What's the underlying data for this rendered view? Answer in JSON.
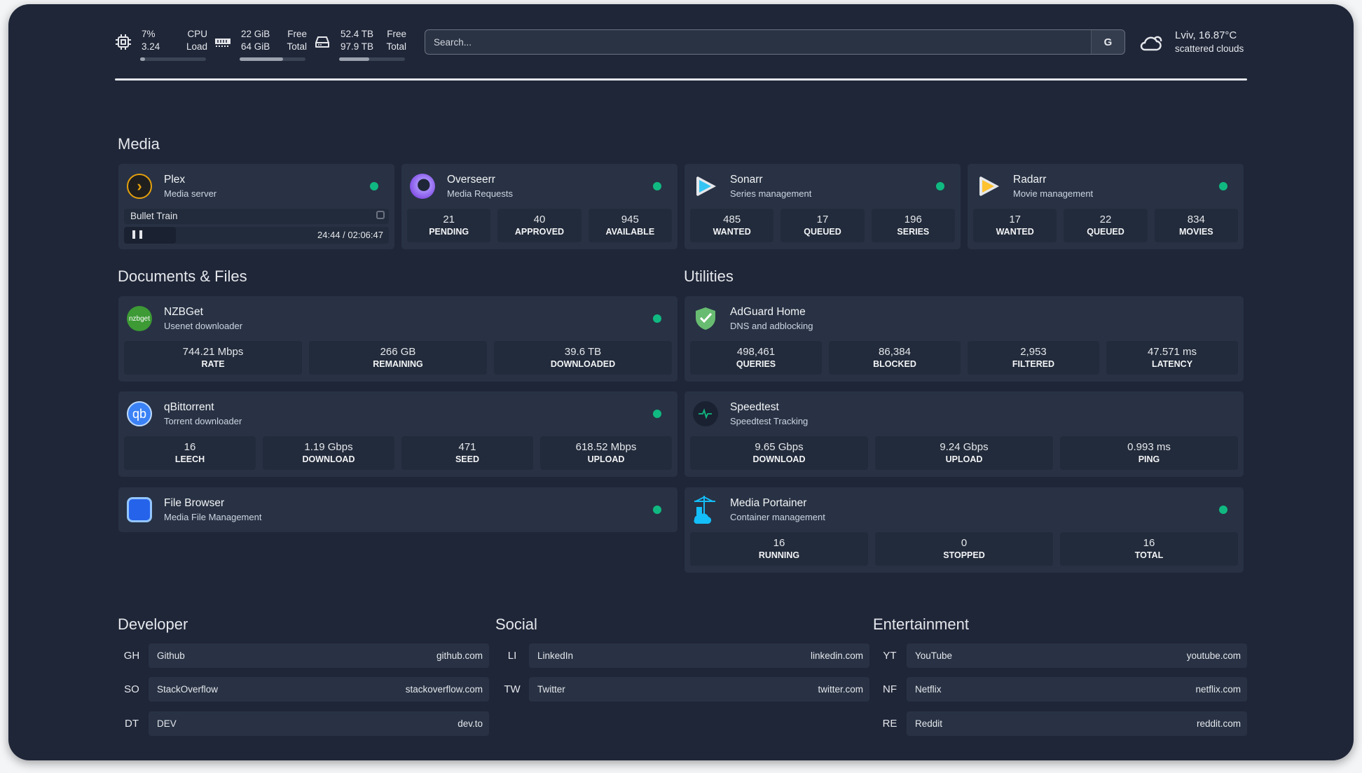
{
  "header": {
    "cpu": {
      "icon": "cpu-icon",
      "usage": "7%",
      "load": "3.24",
      "label1": "CPU",
      "label2": "Load",
      "percent": 7
    },
    "memory": {
      "icon": "memory-icon",
      "free": "22 GiB",
      "total": "64 GiB",
      "label1": "Free",
      "label2": "Total",
      "percent": 66
    },
    "disk": {
      "icon": "disk-icon",
      "free": "52.4 TB",
      "total": "97.9 TB",
      "label1": "Free",
      "label2": "Total",
      "percent": 46
    },
    "search": {
      "placeholder": "Search...",
      "button": "G"
    },
    "weather": {
      "icon": "cloud-icon",
      "location": "Lviv, 16.87°C",
      "condition": "scattered clouds"
    }
  },
  "status_color": "#10b981",
  "sections": {
    "media": "Media",
    "documents": "Documents & Files",
    "utilities": "Utilities",
    "developer": "Developer",
    "social": "Social",
    "entertainment": "Entertainment"
  },
  "media": [
    {
      "name": "Plex",
      "desc": "Media server",
      "now_playing": {
        "title": "Bullet Train",
        "time": "24:44 / 02:06:47",
        "progress": 19.5
      }
    },
    {
      "name": "Overseerr",
      "desc": "Media Requests",
      "stats": [
        {
          "v": "21",
          "k": "Pending"
        },
        {
          "v": "40",
          "k": "Approved"
        },
        {
          "v": "945",
          "k": "Available"
        }
      ]
    },
    {
      "name": "Sonarr",
      "desc": "Series management",
      "stats": [
        {
          "v": "485",
          "k": "Wanted"
        },
        {
          "v": "17",
          "k": "Queued"
        },
        {
          "v": "196",
          "k": "Series"
        }
      ]
    },
    {
      "name": "Radarr",
      "desc": "Movie management",
      "stats": [
        {
          "v": "17",
          "k": "Wanted"
        },
        {
          "v": "22",
          "k": "Queued"
        },
        {
          "v": "834",
          "k": "Movies"
        }
      ]
    }
  ],
  "documents": [
    {
      "name": "NZBGet",
      "desc": "Usenet downloader",
      "logo_text": "nzbget",
      "stats": [
        {
          "v": "744.21 Mbps",
          "k": "Rate"
        },
        {
          "v": "266 GB",
          "k": "Remaining"
        },
        {
          "v": "39.6 TB",
          "k": "Downloaded"
        }
      ]
    },
    {
      "name": "qBittorrent",
      "desc": "Torrent downloader",
      "logo_text": "qb",
      "stats": [
        {
          "v": "16",
          "k": "Leech"
        },
        {
          "v": "1.19 Gbps",
          "k": "Download"
        },
        {
          "v": "471",
          "k": "Seed"
        },
        {
          "v": "618.52 Mbps",
          "k": "Upload"
        }
      ]
    },
    {
      "name": "File Browser",
      "desc": "Media File Management"
    }
  ],
  "utilities": [
    {
      "name": "AdGuard Home",
      "desc": "DNS and adblocking",
      "stats": [
        {
          "v": "498,461",
          "k": "Queries"
        },
        {
          "v": "86,384",
          "k": "Blocked"
        },
        {
          "v": "2,953",
          "k": "Filtered"
        },
        {
          "v": "47.571 ms",
          "k": "Latency"
        }
      ]
    },
    {
      "name": "Speedtest",
      "desc": "Speedtest Tracking",
      "stats": [
        {
          "v": "9.65 Gbps",
          "k": "Download"
        },
        {
          "v": "9.24 Gbps",
          "k": "Upload"
        },
        {
          "v": "0.993 ms",
          "k": "Ping"
        }
      ]
    },
    {
      "name": "Media Portainer",
      "desc": "Container management",
      "stats": [
        {
          "v": "16",
          "k": "Running"
        },
        {
          "v": "0",
          "k": "Stopped"
        },
        {
          "v": "16",
          "k": "Total"
        }
      ]
    }
  ],
  "bookmarks": {
    "developer": [
      {
        "ab": "GH",
        "name": "Github",
        "url": "github.com"
      },
      {
        "ab": "SO",
        "name": "StackOverflow",
        "url": "stackoverflow.com"
      },
      {
        "ab": "DT",
        "name": "DEV",
        "url": "dev.to"
      }
    ],
    "social": [
      {
        "ab": "LI",
        "name": "LinkedIn",
        "url": "linkedin.com"
      },
      {
        "ab": "TW",
        "name": "Twitter",
        "url": "twitter.com"
      }
    ],
    "entertainment": [
      {
        "ab": "YT",
        "name": "YouTube",
        "url": "youtube.com"
      },
      {
        "ab": "NF",
        "name": "Netflix",
        "url": "netflix.com"
      },
      {
        "ab": "RE",
        "name": "Reddit",
        "url": "reddit.com"
      }
    ]
  }
}
